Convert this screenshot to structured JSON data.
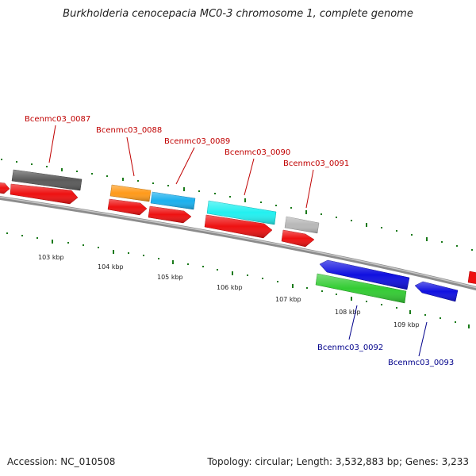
{
  "title": "Burkholderia cenocepacia MC0-3 chromosome 1, complete genome",
  "footer": {
    "accession": "Accession: NC_010508",
    "summary": "Topology: circular; Length: 3,532,883 bp; Genes: 3,233"
  },
  "colors": {
    "backbone": "#8c8c8c",
    "tick": "#1a7a1a",
    "forward_label": "#c00000",
    "reverse_label": "#00008b",
    "cds_red": "#ee1111",
    "dark_gray": "#5a5a5a",
    "orange": "#ff9a1a",
    "sky": "#1ab0ee",
    "cyan": "#22f0f0",
    "light_gray": "#b8b8b8",
    "blue": "#1010e0",
    "green": "#33cc33"
  },
  "scale_labels": [
    "103 kbp",
    "104 kbp",
    "105 kbp",
    "106 kbp",
    "107 kbp",
    "108 kbp",
    "109 kbp"
  ],
  "gene_labels": [
    {
      "id": "gene-label-0087",
      "text": "Bcenmc03_0087",
      "strand": "forward"
    },
    {
      "id": "gene-label-0088",
      "text": "Bcenmc03_0088",
      "strand": "forward"
    },
    {
      "id": "gene-label-0089",
      "text": "Bcenmc03_0089",
      "strand": "forward"
    },
    {
      "id": "gene-label-0090",
      "text": "Bcenmc03_0090",
      "strand": "forward"
    },
    {
      "id": "gene-label-0091",
      "text": "Bcenmc03_0091",
      "strand": "forward"
    },
    {
      "id": "gene-label-0092",
      "text": "Bcenmc03_0092",
      "strand": "reverse"
    },
    {
      "id": "gene-label-0093",
      "text": "Bcenmc03_0093",
      "strand": "reverse"
    }
  ]
}
